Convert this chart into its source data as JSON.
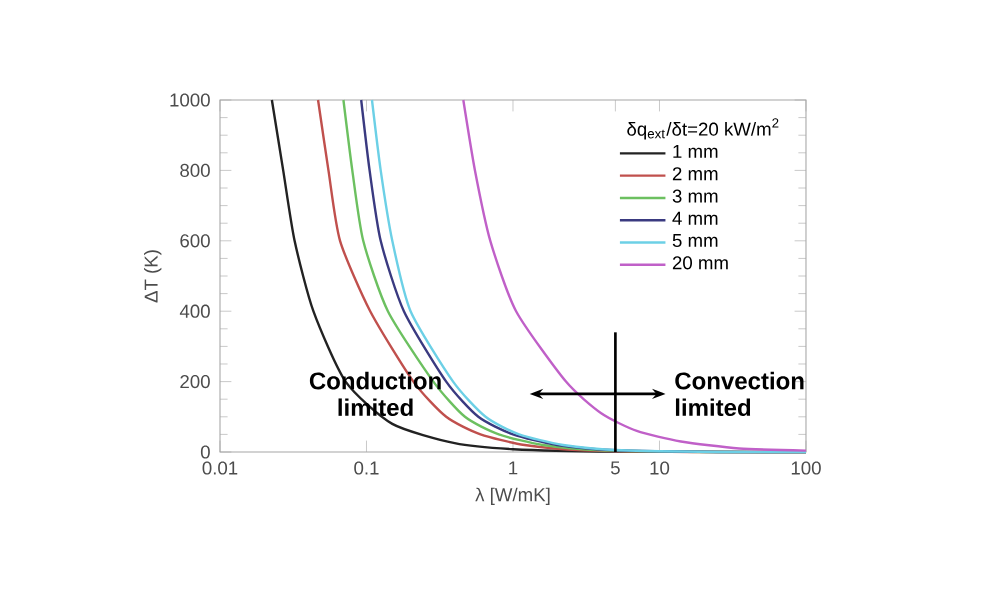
{
  "chart_data": {
    "type": "line",
    "xlabel": "λ [W/mK]",
    "ylabel": "ΔT (K)",
    "legend_title": "δq$_{ext}$/δt=20 kW/m$^{2}$",
    "log": "x",
    "xlim": [
      0.01,
      100
    ],
    "ylim": [
      0,
      1000
    ],
    "xticks": [
      0.01,
      0.1,
      1,
      5,
      10,
      100
    ],
    "yticks": [
      0,
      200,
      400,
      600,
      800,
      1000
    ],
    "legend": "top right",
    "grid": false,
    "marker": "none",
    "line_style": "solid",
    "series": [
      {
        "name": "1 mm",
        "color": "#222222",
        "x": [
          0.0226,
          0.027,
          0.0323,
          0.0434,
          0.072,
          0.15,
          0.4,
          1,
          5,
          100
        ],
        "values": [
          1000,
          800,
          600,
          400,
          200,
          80,
          25,
          8,
          1,
          0
        ]
      },
      {
        "name": "2 mm",
        "color": "#c0504d",
        "x": [
          0.0467,
          0.055,
          0.066,
          0.106,
          0.209,
          0.35,
          0.6,
          1.2,
          3,
          20,
          100
        ],
        "values": [
          1000,
          800,
          600,
          400,
          200,
          100,
          50,
          20,
          5,
          0,
          0
        ]
      },
      {
        "name": "3 mm",
        "color": "#6cc060",
        "x": [
          0.0696,
          0.08,
          0.095,
          0.14,
          0.286,
          0.47,
          0.8,
          1.6,
          4,
          25,
          100
        ],
        "values": [
          1000,
          800,
          600,
          400,
          200,
          100,
          50,
          20,
          5,
          0,
          0
        ]
      },
      {
        "name": "4 mm",
        "color": "#3a3a80",
        "x": [
          0.092,
          0.105,
          0.125,
          0.18,
          0.35,
          0.58,
          1.0,
          2.0,
          5,
          30,
          100
        ],
        "values": [
          1000,
          800,
          600,
          400,
          200,
          100,
          50,
          20,
          5,
          0,
          0
        ]
      },
      {
        "name": "5 mm",
        "color": "#6cd0e6",
        "x": [
          0.109,
          0.125,
          0.15,
          0.2,
          0.39,
          0.65,
          1.1,
          2.2,
          5.5,
          30,
          100
        ],
        "values": [
          1000,
          800,
          600,
          400,
          200,
          100,
          50,
          20,
          5,
          0,
          0
        ]
      },
      {
        "name": "20 mm",
        "color": "#c060c8",
        "x": [
          0.458,
          0.55,
          0.7,
          1.05,
          2.3,
          4,
          7,
          14,
          35,
          100
        ],
        "values": [
          1000,
          800,
          600,
          400,
          200,
          110,
          60,
          30,
          10,
          4
        ]
      }
    ],
    "ref_lines": [
      {
        "axis": "x",
        "value": 5,
        "color": "#000000"
      }
    ],
    "annotations": [
      "Conduction limited",
      "Convection limited"
    ]
  }
}
